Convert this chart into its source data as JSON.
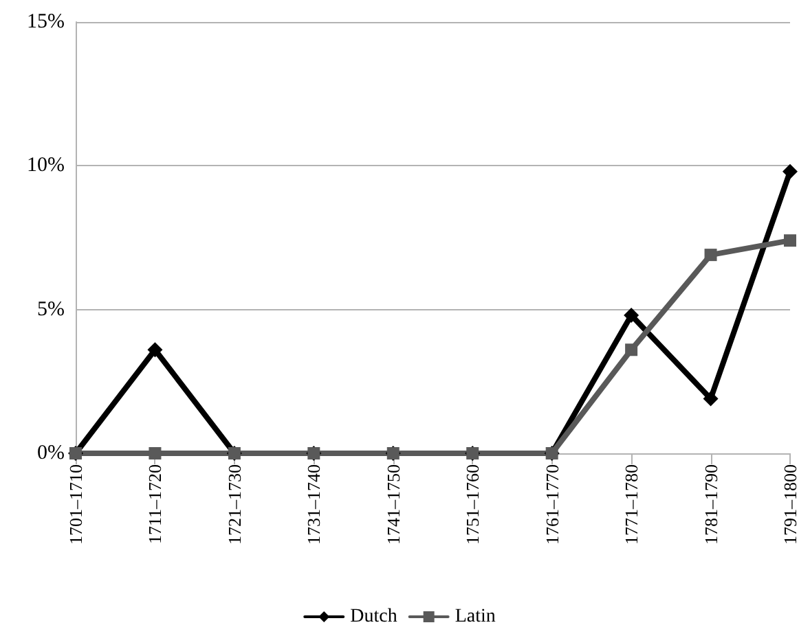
{
  "chart_data": {
    "type": "line",
    "categories": [
      "1701–1710",
      "1711–1720",
      "1721–1730",
      "1731–1740",
      "1741–1750",
      "1751–1760",
      "1761–1770",
      "1771–1780",
      "1781–1790",
      "1791–1800"
    ],
    "series": [
      {
        "name": "Dutch",
        "color": "#000000",
        "marker": "diamond",
        "values": [
          0,
          3.6,
          0,
          0,
          0,
          0,
          0,
          4.8,
          1.9,
          9.8
        ]
      },
      {
        "name": "Latin",
        "color": "#595959",
        "marker": "square",
        "values": [
          0,
          0,
          0,
          0,
          0,
          0,
          0,
          3.6,
          6.9,
          7.4
        ]
      }
    ],
    "ylim": [
      0,
      15
    ],
    "yticks": [
      {
        "value": 0,
        "label": "0%"
      },
      {
        "value": 5,
        "label": "5%"
      },
      {
        "value": 10,
        "label": "10%"
      },
      {
        "value": 15,
        "label": "15%"
      }
    ],
    "grid": "y",
    "legend": "bottom",
    "line_style": "solid"
  }
}
